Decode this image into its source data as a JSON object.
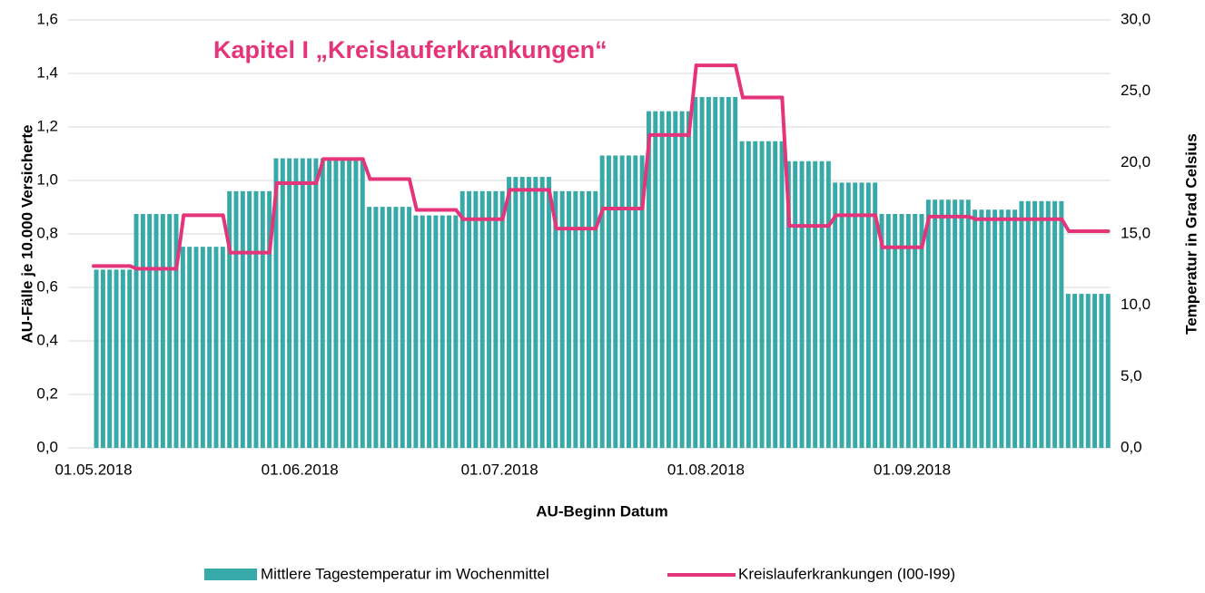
{
  "chart_data": {
    "type": "bar-line",
    "title": "Kapitel I „Kreislauferkrankungen“",
    "xlabel": "AU-Beginn Datum",
    "ylabel": "AU-Fälle je 10.000 Versicherte",
    "y2label": "Temperatur in Grad Celsius",
    "x": [
      "01.05.2018",
      "07.05.2018",
      "14.05.2018",
      "21.05.2018",
      "28.05.2018",
      "04.06.2018",
      "11.06.2018",
      "18.06.2018",
      "25.06.2018",
      "02.07.2018",
      "09.07.2018",
      "16.07.2018",
      "23.07.2018",
      "30.07.2018",
      "06.08.2018",
      "13.08.2018",
      "20.08.2018",
      "27.08.2018",
      "03.09.2018",
      "10.09.2018",
      "17.09.2018",
      "24.09.2018"
    ],
    "xticks": [
      "01.05.2018",
      "01.06.2018",
      "01.07.2018",
      "01.08.2018",
      "01.09.2018"
    ],
    "series": [
      {
        "name": "Mittlere Tagestemperatur im Wochenmittel",
        "type": "bar",
        "axis": "y2",
        "color": "#36a9a8",
        "values": [
          12.5,
          16.4,
          14.1,
          18.0,
          20.3,
          20.3,
          16.9,
          16.3,
          18.0,
          19.0,
          18.0,
          20.5,
          23.6,
          24.6,
          21.5,
          20.1,
          18.6,
          16.4,
          17.4,
          16.7,
          17.3,
          10.8
        ]
      },
      {
        "name": "Kreislauferkrankungen (I00-I99)",
        "type": "line",
        "axis": "y",
        "color": "#e5357a",
        "values": [
          0.68,
          0.67,
          0.87,
          0.73,
          0.99,
          1.08,
          1.005,
          0.89,
          0.855,
          0.965,
          0.82,
          0.895,
          1.17,
          1.43,
          1.31,
          0.83,
          0.87,
          0.75,
          0.865,
          0.855,
          0.855,
          0.81
        ]
      }
    ],
    "ylim": [
      0,
      1.6
    ],
    "yticks": [
      {
        "value": 0,
        "label": "0,0"
      },
      {
        "value": 0.2,
        "label": "0,2"
      },
      {
        "value": 0.4,
        "label": "0,4"
      },
      {
        "value": 0.6,
        "label": "0,6"
      },
      {
        "value": 0.8,
        "label": "0,8"
      },
      {
        "value": 1.0,
        "label": "1,0"
      },
      {
        "value": 1.2,
        "label": "1,2"
      },
      {
        "value": 1.4,
        "label": "1,4"
      },
      {
        "value": 1.6,
        "label": "1,6"
      }
    ],
    "y2lim": [
      0,
      30
    ],
    "y2ticks": [
      {
        "value": 0,
        "label": "0,0"
      },
      {
        "value": 5,
        "label": "5,0"
      },
      {
        "value": 10,
        "label": "10,0"
      },
      {
        "value": 15,
        "label": "15,0"
      },
      {
        "value": 20,
        "label": "20,0"
      },
      {
        "value": 25,
        "label": "25,0"
      },
      {
        "value": 30,
        "label": "30,0"
      }
    ],
    "grid": true,
    "legend": "bottom"
  }
}
